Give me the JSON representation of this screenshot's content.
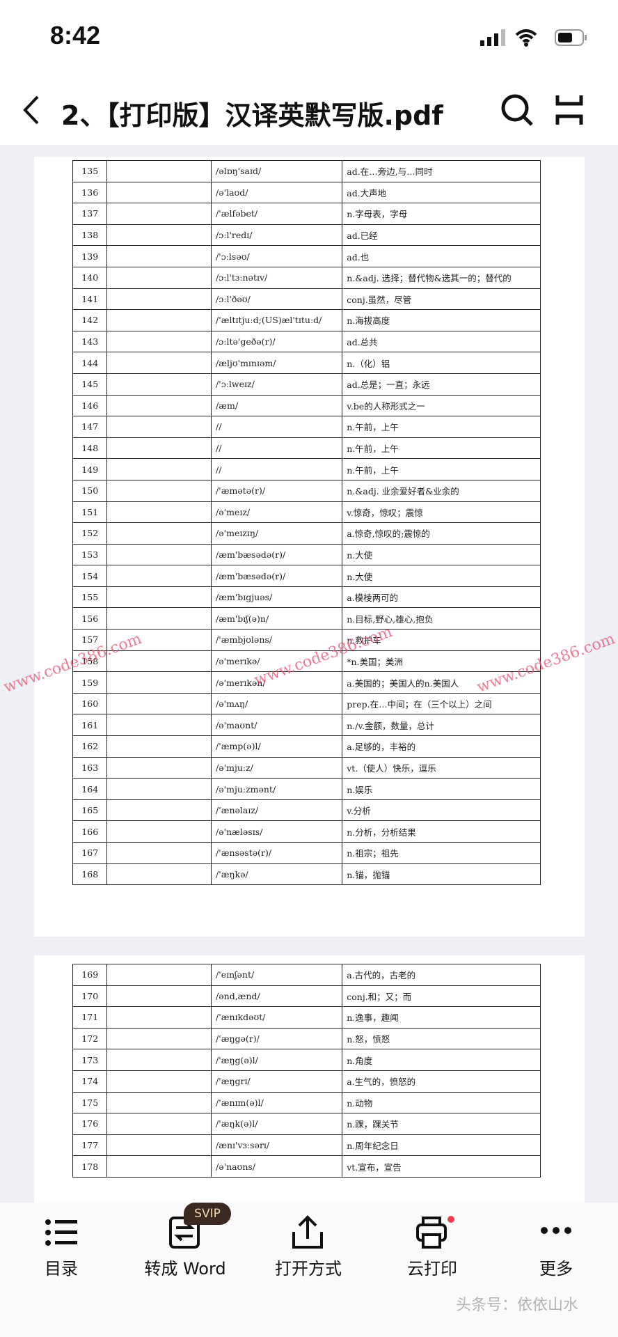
{
  "status_bar": {
    "time": "8:42"
  },
  "nav": {
    "title": "2、【打印版】汉译英默写版.pdf"
  },
  "pages": [
    {
      "rows": [
        [
          "135",
          "/əlɒŋ'saɪd/",
          "ad.在…旁边,与…同时"
        ],
        [
          "136",
          "/ə'laʊd/",
          "ad.大声地"
        ],
        [
          "137",
          "/'ælfəbet/",
          "n.字母表，字母"
        ],
        [
          "138",
          "/ɔːl'redɪ/",
          "ad.已经"
        ],
        [
          "139",
          "/'ɔːlsəʊ/",
          "ad.也"
        ],
        [
          "140",
          "/ɔːl'tɜːnətɪv/",
          "n.&adj. 选择；替代物&选其一的；替代的"
        ],
        [
          "141",
          "/ɔːl'ðəʊ/",
          "conj.虽然，尽管"
        ],
        [
          "142",
          "/'æltɪtjuːd;(US)æl'tɪtuːd/",
          "n.海拔高度"
        ],
        [
          "143",
          "/ɔːltə'geðə(r)/",
          "ad.总共"
        ],
        [
          "144",
          "/æljʊ'mɪnɪəm/",
          "n.（化）铝"
        ],
        [
          "145",
          "/'ɔːlweɪz/",
          "ad.总是；一直；永远"
        ],
        [
          "146",
          "/æm/",
          "v.be的人称形式之一"
        ],
        [
          "147",
          "//",
          "n.午前，上午"
        ],
        [
          "148",
          "//",
          "n.午前，上午"
        ],
        [
          "149",
          "//",
          "n.午前，上午"
        ],
        [
          "150",
          "/'æmətə(r)/",
          "n.&adj. 业余爱好者&业余的"
        ],
        [
          "151",
          "/ə'meɪz/",
          "v.惊奇，惊叹；震惊"
        ],
        [
          "152",
          "/ə'meɪzɪŋ/",
          "a.惊奇,惊叹的;震惊的"
        ],
        [
          "153",
          "/æm'bæsədə(r)/",
          "n.大使"
        ],
        [
          "154",
          "/æm'bæsədə(r)/",
          "n.大使"
        ],
        [
          "155",
          "/æm'bɪgjuəs/",
          "a.模棱两可的"
        ],
        [
          "156",
          "/æm'bɪʃ(ə)n/",
          "n.目标,野心,雄心,抱负"
        ],
        [
          "157",
          "/'æmbjʊləns/",
          "n.救护车"
        ],
        [
          "158",
          "/ə'merɪkə/",
          "*n.美国；美洲"
        ],
        [
          "159",
          "/ə'merɪkən/",
          "a.美国的；美国人的n.美国人"
        ],
        [
          "160",
          "/ə'mʌŋ/",
          "prep.在…中间；在（三个以上）之间"
        ],
        [
          "161",
          "/ə'maʊnt/",
          "n./v.金额，数量，总计"
        ],
        [
          "162",
          "/'æmp(ə)l/",
          "a.足够的，丰裕的"
        ],
        [
          "163",
          "/ə'mjuːz/",
          "vt.（使人）快乐，逗乐"
        ],
        [
          "164",
          "/ə'mjuːzmənt/",
          "n.娱乐"
        ],
        [
          "165",
          "/'ænəlaɪz/",
          "v.分析"
        ],
        [
          "166",
          "/ə'næləsɪs/",
          "n.分析，分析结果"
        ],
        [
          "167",
          "/'ænsəstə(r)/",
          "n.祖宗；祖先"
        ],
        [
          "168",
          "/'æŋkə/",
          "n.锚，抛锚"
        ]
      ]
    },
    {
      "rows": [
        [
          "169",
          "/'eɪnʃənt/",
          "a.古代的，古老的"
        ],
        [
          "170",
          "/ənd,ænd/",
          "conj.和；又；而"
        ],
        [
          "171",
          "/'ænɪkdəʊt/",
          "n.逸事，趣闻"
        ],
        [
          "172",
          "/'æŋgə(r)/",
          "n.怒，愤怒"
        ],
        [
          "173",
          "/'æŋg(ə)l/",
          "n.角度"
        ],
        [
          "174",
          "/'æŋgrɪ/",
          "a.生气的，愤怒的"
        ],
        [
          "175",
          "/'ænɪm(ə)l/",
          "n.动物"
        ],
        [
          "176",
          "/'æŋk(ə)l/",
          "n.踝，踝关节"
        ],
        [
          "177",
          "/ænɪ'vɜːsərɪ/",
          "n.周年纪念日"
        ],
        [
          "178",
          "/ə'naʊns/",
          "vt.宣布，宣告"
        ]
      ]
    }
  ],
  "toolbar": {
    "items": [
      "目录",
      "转成 Word",
      "打开方式",
      "云打印",
      "更多"
    ],
    "badge": "SVIP"
  },
  "watermarks": [
    "www.code386.com",
    "www.code386.com",
    "www.code386.com",
    "头条号：依依山水"
  ]
}
